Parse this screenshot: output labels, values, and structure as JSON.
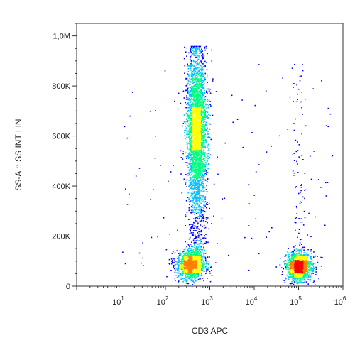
{
  "chart_data": {
    "type": "scatter",
    "style": "flow-cytometry density dot plot",
    "title": "",
    "xlabel": "CD3 APC",
    "ylabel": "SS-A :: SS INT LIN",
    "x_scale": "log",
    "x_range": [
      1,
      1000000
    ],
    "x_ticks": [
      {
        "base": "10",
        "exp": "1",
        "value": 10
      },
      {
        "base": "10",
        "exp": "2",
        "value": 100
      },
      {
        "base": "10",
        "exp": "3",
        "value": 1000
      },
      {
        "base": "10",
        "exp": "4",
        "value": 10000
      },
      {
        "base": "10",
        "exp": "5",
        "value": 100000
      },
      {
        "base": "10",
        "exp": "6",
        "value": 1000000
      }
    ],
    "y_scale": "linear",
    "y_range": [
      0,
      1050000
    ],
    "y_ticks": [
      {
        "label": "0",
        "value": 0
      },
      {
        "label": "200K",
        "value": 200000
      },
      {
        "label": "400K",
        "value": 400000
      },
      {
        "label": "600K",
        "value": 600000
      },
      {
        "label": "800K",
        "value": 800000
      },
      {
        "label": "1,0M",
        "value": 1000000
      }
    ],
    "grid": false,
    "legend": "none",
    "colormap": [
      "#0000ff",
      "#00c0ff",
      "#00ff80",
      "#ffff00",
      "#ff8000",
      "#ff0000"
    ],
    "populations": [
      {
        "name": "CD3- tall cluster",
        "x_log_center": 2.7,
        "x_log_sd": 0.11,
        "y_min": 60000,
        "y_max": 960000,
        "count": 3200,
        "peak_y": 620000
      },
      {
        "name": "CD3- low cluster",
        "x_log_center": 2.55,
        "x_log_sd": 0.16,
        "y_center": 85000,
        "y_sd": 30000,
        "count": 1100
      },
      {
        "name": "CD3+ cluster",
        "x_log_center": 5.0,
        "x_log_sd": 0.14,
        "y_center": 80000,
        "y_sd": 28000,
        "count": 1300
      },
      {
        "name": "CD3+ sparse vertical",
        "x_log_center": 5.0,
        "x_log_sd": 0.1,
        "y_min": 150000,
        "y_max": 900000,
        "count": 80
      },
      {
        "name": "background scatter",
        "x_log_range": [
          1.0,
          5.8
        ],
        "y_range": [
          20000,
          900000
        ],
        "count": 120
      }
    ]
  }
}
